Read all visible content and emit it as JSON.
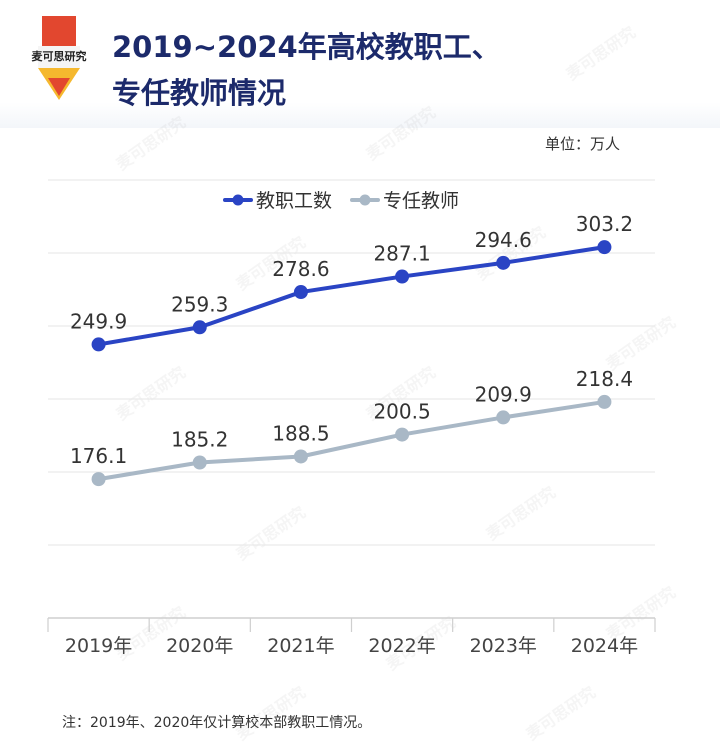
{
  "header": {
    "logo_text": "麦可思研究",
    "title_line1": "2019~2024年高校教职工、",
    "title_line2": "专任教师情况",
    "colors": {
      "title": "#1c2a6b",
      "logo_red": "#e2472f",
      "logo_yellow": "#f5b82e"
    }
  },
  "unit_label": "单位：万人",
  "footnote": "注：2019年、2020年仅计算校本部教职工情况。",
  "watermark_text": "麦可思研究",
  "chart_data": {
    "type": "line",
    "categories": [
      "2019年",
      "2020年",
      "2021年",
      "2022年",
      "2023年",
      "2024年"
    ],
    "series": [
      {
        "name": "教职工数",
        "values": [
          249.9,
          259.3,
          278.6,
          287.1,
          294.6,
          303.2
        ],
        "color": "#2a44c4"
      },
      {
        "name": "专任教师",
        "values": [
          176.1,
          185.2,
          188.5,
          200.5,
          209.9,
          218.4
        ],
        "color": "#a9b8c6"
      }
    ],
    "ylim": [
      100,
      340
    ],
    "grid": true,
    "legend": "top-center"
  }
}
